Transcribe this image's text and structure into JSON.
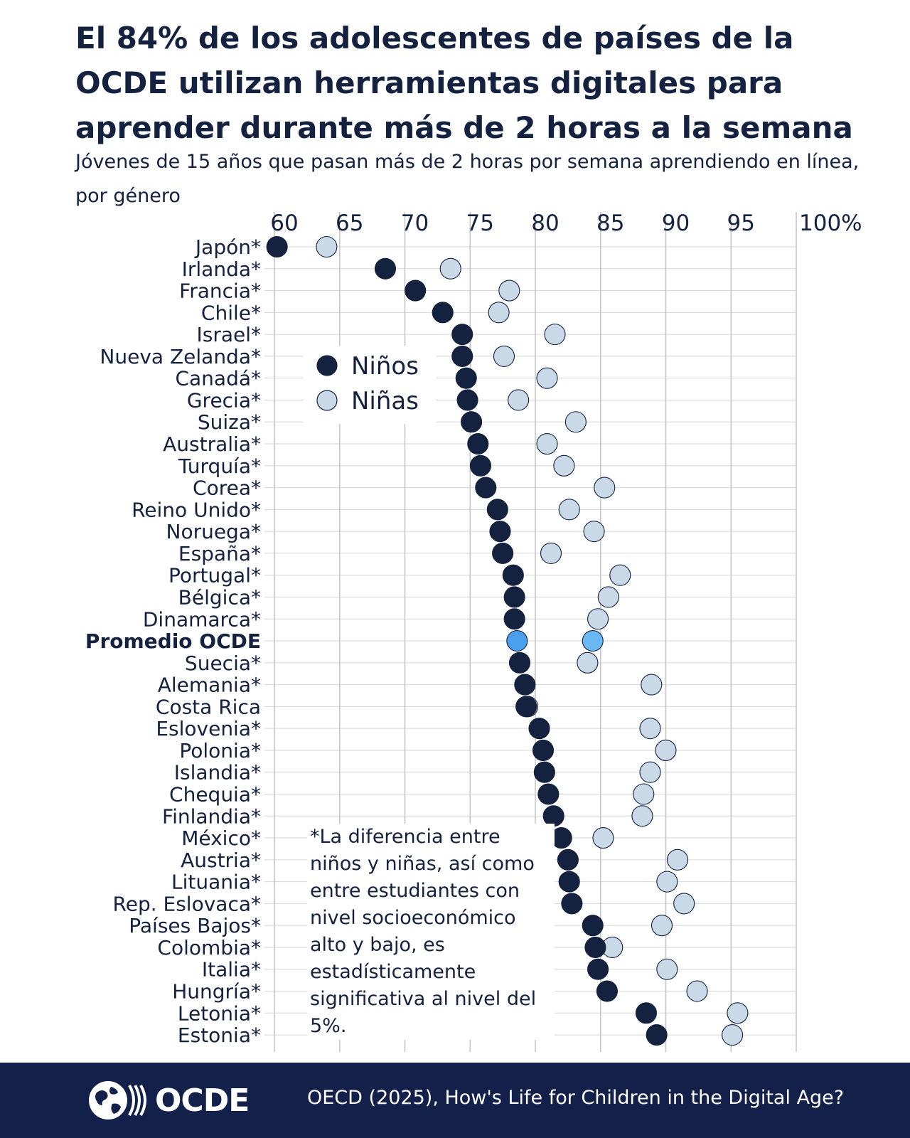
{
  "title": "El 84% de los adolescentes de países de la OCDE utilizan herramientas digitales para aprender durante más de 2 horas a la semana",
  "subtitle": "Jóvenes de 15 años que pasan más de 2 horas por semana aprendiendo en línea, por género",
  "footnote": "*La diferencia entre niños y niñas, así como entre estudiantes con nivel socioeconómico alto y bajo, es estadísticamente significativa al nivel del 5%.",
  "footer": {
    "logo_text": "OCDE",
    "source": "OECD (2025), How's Life for Children in the Digital Age?"
  },
  "colors": {
    "ninos": "#14213f",
    "ninas": "#c9d9e8",
    "highlight_ninos": "#4aa0ec",
    "highlight_ninas": "#6ab8f4",
    "footer": "#12204a"
  },
  "chart_data": {
    "type": "scatter",
    "orientation": "horizontal dot plot",
    "x_axis_position": "top",
    "xlim": [
      60,
      100
    ],
    "x_ticks": [
      60,
      65,
      70,
      75,
      80,
      85,
      90,
      95,
      100
    ],
    "x_tick_labels": [
      "60",
      "65",
      "70",
      "75",
      "80",
      "85",
      "90",
      "95",
      "100%"
    ],
    "grid": true,
    "legend_position": "top-left inside plot",
    "highlight_category": "Promedio OCDE",
    "categories": [
      "Japón*",
      "Irlanda*",
      "Francia*",
      "Chile*",
      "Israel*",
      "Nueva Zelanda*",
      "Canadá*",
      "Grecia*",
      "Suiza*",
      "Australia*",
      "Turquía*",
      "Corea*",
      "Reino Unido*",
      "Noruega*",
      "España*",
      "Portugal*",
      "Bélgica*",
      "Dinamarca*",
      "Promedio OCDE",
      "Suecia*",
      "Alemania*",
      "Costa Rica",
      "Eslovenia*",
      "Polonia*",
      "Islandia*",
      "Chequia*",
      "Finlandia*",
      "México*",
      "Austria*",
      "Lituania*",
      "Rep. Eslovaca*",
      "Países Bajos*",
      "Colombia*",
      "Italia*",
      "Hungría*",
      "Letonia*",
      "Estonia*"
    ],
    "series": [
      {
        "name": "Niños",
        "values": [
          60.2,
          68.5,
          70.8,
          72.9,
          74.4,
          74.4,
          74.7,
          74.8,
          75.1,
          75.6,
          75.8,
          76.2,
          77.1,
          77.3,
          77.5,
          78.3,
          78.4,
          78.4,
          78.6,
          78.8,
          79.2,
          79.3,
          80.3,
          80.6,
          80.7,
          81.0,
          81.4,
          82.0,
          82.5,
          82.6,
          82.8,
          84.4,
          84.6,
          84.8,
          85.5,
          88.5,
          89.3
        ]
      },
      {
        "name": "Niñas",
        "values": [
          64.0,
          73.5,
          78.0,
          77.2,
          81.5,
          77.6,
          80.9,
          78.7,
          83.1,
          80.9,
          82.2,
          85.3,
          82.6,
          84.5,
          81.2,
          86.5,
          85.6,
          84.8,
          84.4,
          84.0,
          88.9,
          79.4,
          88.8,
          90.0,
          88.8,
          88.3,
          88.2,
          85.2,
          90.9,
          90.1,
          91.4,
          89.7,
          85.9,
          90.1,
          92.4,
          95.5,
          95.1
        ]
      }
    ]
  }
}
